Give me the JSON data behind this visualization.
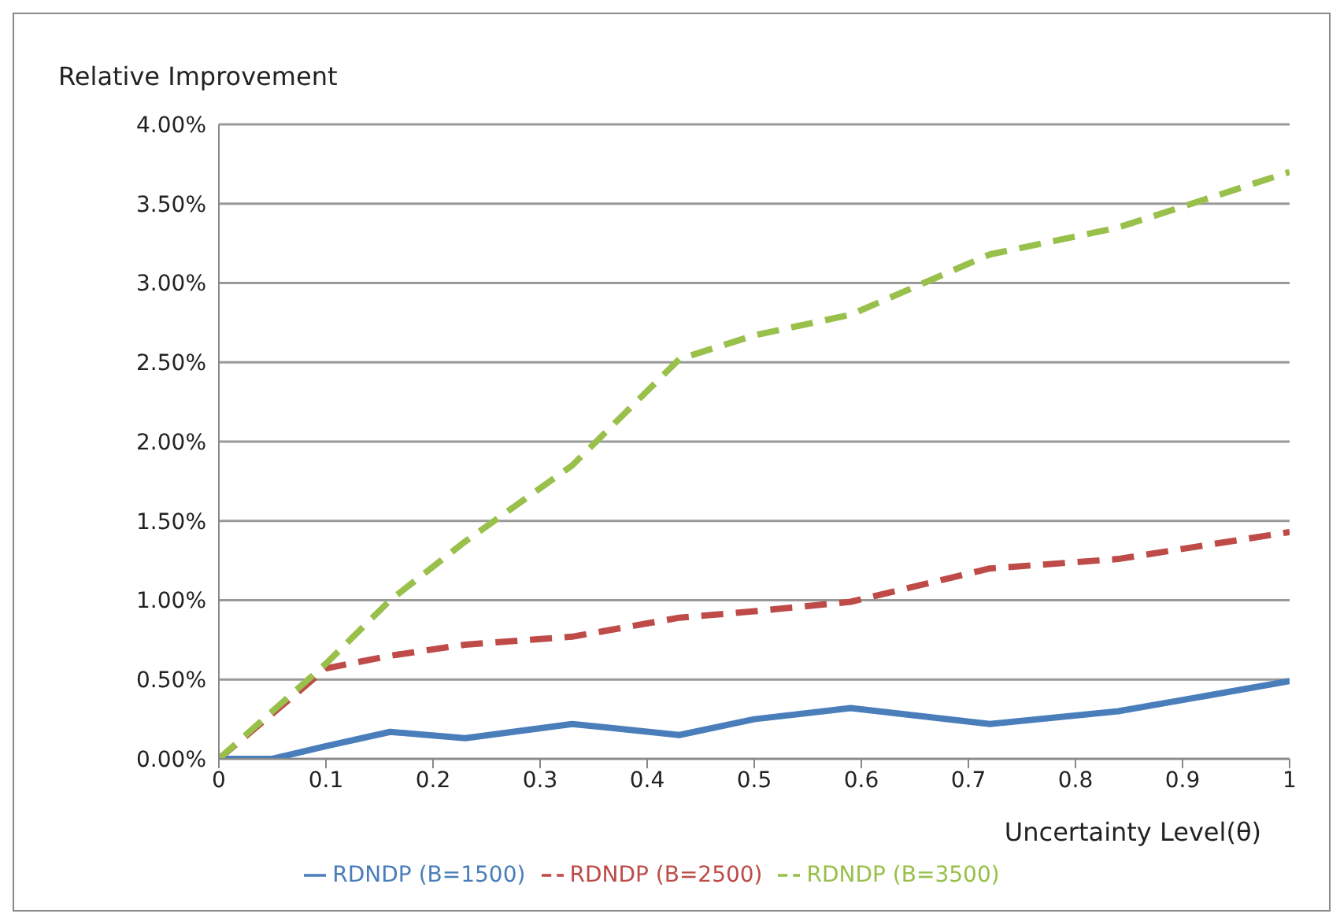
{
  "chart_data": {
    "type": "line",
    "ylabel": "Relative Improvement",
    "xlabel": "Uncertainty Level(θ)",
    "xlim": [
      0,
      1
    ],
    "xticks": [
      0,
      0.1,
      0.2,
      0.3,
      0.4,
      0.5,
      0.6,
      0.7,
      0.8,
      0.9,
      1
    ],
    "ylim": [
      0,
      4
    ],
    "yticks": [
      {
        "value": 0,
        "label": "0.00%"
      },
      {
        "value": 0.5,
        "label": "0.50%"
      },
      {
        "value": 1,
        "label": "1.00%"
      },
      {
        "value": 1.5,
        "label": "1.50%"
      },
      {
        "value": 2,
        "label": "2.00%"
      },
      {
        "value": 2.5,
        "label": "2.50%"
      },
      {
        "value": 3,
        "label": "3.00%"
      },
      {
        "value": 3.5,
        "label": "3.50%"
      },
      {
        "value": 4,
        "label": "4.00%"
      }
    ],
    "grid": "y",
    "legend": "bottom",
    "marker": "none",
    "series": [
      {
        "name": "RDNDP (B=1500)",
        "color": "#4a7ebb",
        "line_style": "solid",
        "x": [
          0,
          0.05,
          0.1,
          0.16,
          0.23,
          0.33,
          0.43,
          0.5,
          0.59,
          0.72,
          0.84,
          1
        ],
        "values": [
          0,
          0,
          0.08,
          0.17,
          0.13,
          0.22,
          0.15,
          0.25,
          0.32,
          0.22,
          0.3,
          0.49
        ]
      },
      {
        "name": "RDNDP (B=2500)",
        "color": "#be4b48",
        "line_style": "dashed",
        "x": [
          0,
          0.1,
          0.16,
          0.23,
          0.33,
          0.43,
          0.5,
          0.59,
          0.72,
          0.84,
          1
        ],
        "values": [
          0,
          0.57,
          0.65,
          0.72,
          0.77,
          0.89,
          0.93,
          0.99,
          1.2,
          1.26,
          1.43
        ]
      },
      {
        "name": "RDNDP (B=3500)",
        "color": "#98c04a",
        "line_style": "dashed",
        "x": [
          0,
          0.1,
          0.16,
          0.23,
          0.33,
          0.43,
          0.5,
          0.59,
          0.72,
          0.84,
          1
        ],
        "values": [
          0,
          0.6,
          1.0,
          1.37,
          1.85,
          2.52,
          2.67,
          2.8,
          3.18,
          3.35,
          3.7
        ]
      }
    ]
  }
}
